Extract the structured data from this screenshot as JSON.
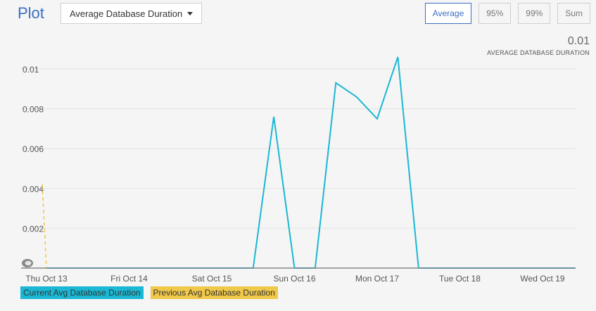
{
  "header": {
    "title": "Plot",
    "metric_dropdown": "Average Database Duration",
    "aggregations": [
      "Average",
      "95%",
      "99%",
      "Sum"
    ],
    "active_aggregation": "Average"
  },
  "summary": {
    "value": "0.01",
    "label": "AVERAGE DATABASE DURATION"
  },
  "chart_data": {
    "type": "line",
    "title": "",
    "xlabel": "",
    "ylabel": "",
    "categories": [
      "Thu Oct 13",
      "Fri Oct 14",
      "Sat Oct 15",
      "Sun Oct 16",
      "Mon Oct 17",
      "Tue Oct 18",
      "Wed Oct 19"
    ],
    "y_ticks": [
      "0.01",
      "0.008",
      "0.006",
      "0.004",
      "0.002"
    ],
    "ylim": [
      0,
      0.0105
    ],
    "grid": "horizontal",
    "legend_position": "bottom-left",
    "series": [
      {
        "name": "Current Avg Database Duration",
        "color": "#1ab8d4",
        "points": [
          [
            0,
            0
          ],
          [
            2.5,
            0
          ],
          [
            2.75,
            0.0076
          ],
          [
            3.0,
            0
          ],
          [
            3.25,
            0
          ],
          [
            3.5,
            0.0093
          ],
          [
            3.75,
            0.0086
          ],
          [
            4.0,
            0.0075
          ],
          [
            4.25,
            0.0106
          ],
          [
            4.5,
            0
          ],
          [
            6.4,
            0
          ]
        ]
      },
      {
        "name": "Previous Avg Database Duration",
        "color": "#f0c84a",
        "points": [
          [
            -0.05,
            0.0042
          ],
          [
            0.0,
            0
          ]
        ]
      }
    ]
  }
}
